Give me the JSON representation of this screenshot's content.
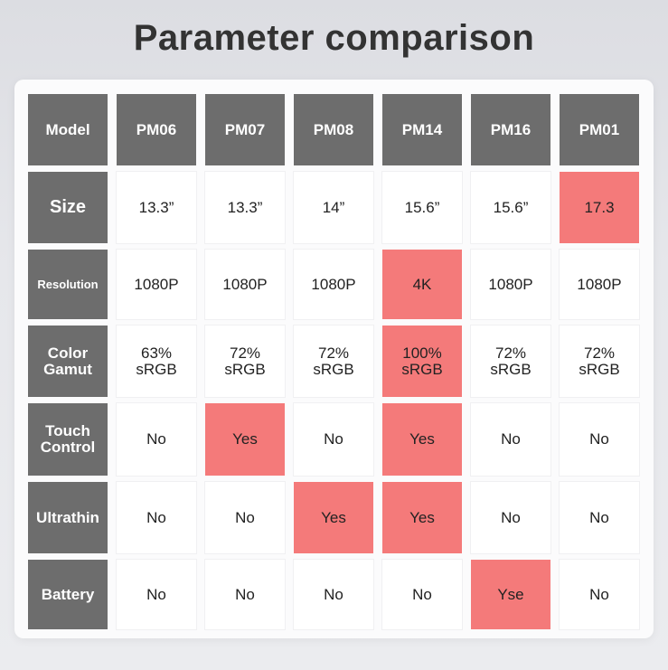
{
  "title": "Parameter comparison",
  "table": {
    "corner": "Model",
    "models": [
      "PM06",
      "PM07",
      "PM08",
      "PM14",
      "PM16",
      "PM01"
    ],
    "highlight_color": "#f47a7a",
    "header_color": "#6d6d6d",
    "rows": [
      {
        "label": "Size",
        "cells": [
          {
            "value": "13.3”",
            "highlight": false
          },
          {
            "value": "13.3”",
            "highlight": false
          },
          {
            "value": "14”",
            "highlight": false
          },
          {
            "value": "15.6”",
            "highlight": false
          },
          {
            "value": "15.6”",
            "highlight": false
          },
          {
            "value": "17.3",
            "highlight": true
          }
        ]
      },
      {
        "label": "Resolution",
        "cells": [
          {
            "value": "1080P",
            "highlight": false
          },
          {
            "value": "1080P",
            "highlight": false
          },
          {
            "value": "1080P",
            "highlight": false
          },
          {
            "value": "4K",
            "highlight": true
          },
          {
            "value": "1080P",
            "highlight": false
          },
          {
            "value": "1080P",
            "highlight": false
          }
        ]
      },
      {
        "label": [
          "Color",
          "Gamut"
        ],
        "cells": [
          {
            "value": [
              "63%",
              "sRGB"
            ],
            "highlight": false
          },
          {
            "value": [
              "72%",
              "sRGB"
            ],
            "highlight": false
          },
          {
            "value": [
              "72%",
              "sRGB"
            ],
            "highlight": false
          },
          {
            "value": [
              "100%",
              "sRGB"
            ],
            "highlight": true
          },
          {
            "value": [
              "72%",
              "sRGB"
            ],
            "highlight": false
          },
          {
            "value": [
              "72%",
              "sRGB"
            ],
            "highlight": false
          }
        ]
      },
      {
        "label": [
          "Touch",
          "Control"
        ],
        "cells": [
          {
            "value": "No",
            "highlight": false
          },
          {
            "value": "Yes",
            "highlight": true
          },
          {
            "value": "No",
            "highlight": false
          },
          {
            "value": "Yes",
            "highlight": true
          },
          {
            "value": "No",
            "highlight": false
          },
          {
            "value": "No",
            "highlight": false
          }
        ]
      },
      {
        "label": "Ultrathin",
        "cells": [
          {
            "value": "No",
            "highlight": false
          },
          {
            "value": "No",
            "highlight": false
          },
          {
            "value": "Yes",
            "highlight": true
          },
          {
            "value": "Yes",
            "highlight": true
          },
          {
            "value": "No",
            "highlight": false
          },
          {
            "value": "No",
            "highlight": false
          }
        ]
      },
      {
        "label": "Battery",
        "cells": [
          {
            "value": "No",
            "highlight": false
          },
          {
            "value": "No",
            "highlight": false
          },
          {
            "value": "No",
            "highlight": false
          },
          {
            "value": "No",
            "highlight": false
          },
          {
            "value": "Yse",
            "highlight": true
          },
          {
            "value": "No",
            "highlight": false
          }
        ]
      }
    ]
  }
}
